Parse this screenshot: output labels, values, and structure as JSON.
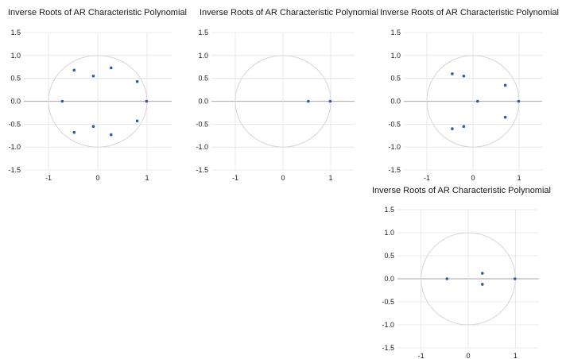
{
  "chart_data": [
    {
      "type": "scatter",
      "title": "Inverse Roots of AR Characteristic Polynomial",
      "xlim": [
        -1.5,
        1.5
      ],
      "ylim": [
        -1.5,
        1.5
      ],
      "x_ticks": [
        "-1",
        "0",
        "1"
      ],
      "y_ticks": [
        "1.5",
        "1.0",
        "0.5",
        "0.0",
        "-0.5",
        "-1.0",
        "-1.5"
      ],
      "unit_circle": true,
      "grid": true,
      "point_color": "#2e5c9e",
      "points": [
        {
          "x": 0.99,
          "y": 0.0
        },
        {
          "x": 0.8,
          "y": 0.43
        },
        {
          "x": 0.8,
          "y": -0.43
        },
        {
          "x": 0.27,
          "y": 0.73
        },
        {
          "x": 0.27,
          "y": -0.73
        },
        {
          "x": -0.09,
          "y": 0.55
        },
        {
          "x": -0.09,
          "y": -0.55
        },
        {
          "x": -0.48,
          "y": 0.68
        },
        {
          "x": -0.48,
          "y": -0.68
        },
        {
          "x": -0.72,
          "y": 0.0
        }
      ]
    },
    {
      "type": "scatter",
      "title": "Inverse Roots of AR Characteristic Polynomial",
      "xlim": [
        -1.5,
        1.5
      ],
      "ylim": [
        -1.5,
        1.5
      ],
      "x_ticks": [
        "-1",
        "0",
        "1"
      ],
      "y_ticks": [
        "1.5",
        "1.0",
        "0.5",
        "0.0",
        "-0.5",
        "-1.0",
        "-1.5"
      ],
      "unit_circle": true,
      "grid": true,
      "point_color": "#2e5c9e",
      "points": [
        {
          "x": 0.53,
          "y": 0.0
        },
        {
          "x": 0.99,
          "y": 0.0
        }
      ]
    },
    {
      "type": "scatter",
      "title": "Inverse Roots of AR Characteristic Polynomial",
      "xlim": [
        -1.5,
        1.5
      ],
      "ylim": [
        -1.5,
        1.5
      ],
      "x_ticks": [
        "-1",
        "0",
        "1"
      ],
      "y_ticks": [
        "1.5",
        "1.0",
        "0.5",
        "0.0",
        "-0.5",
        "-1.0",
        "-1.5"
      ],
      "unit_circle": true,
      "grid": true,
      "point_color": "#2e5c9e",
      "points": [
        {
          "x": 0.99,
          "y": 0.0
        },
        {
          "x": 0.7,
          "y": 0.35
        },
        {
          "x": 0.7,
          "y": -0.35
        },
        {
          "x": 0.1,
          "y": 0.0
        },
        {
          "x": -0.2,
          "y": 0.55
        },
        {
          "x": -0.2,
          "y": -0.55
        },
        {
          "x": -0.45,
          "y": 0.6
        },
        {
          "x": -0.45,
          "y": -0.6
        }
      ]
    },
    {
      "type": "scatter",
      "title": "Inverse Roots of AR Characteristic Polynomial",
      "xlim": [
        -1.5,
        1.5
      ],
      "ylim": [
        -1.5,
        1.5
      ],
      "x_ticks": [
        "-1",
        "0",
        "1"
      ],
      "y_ticks": [
        "1.5",
        "1.0",
        "0.5",
        "0.0",
        "-0.5",
        "-1.0",
        "-1.5"
      ],
      "unit_circle": true,
      "grid": true,
      "point_color": "#2e5c9e",
      "points": [
        {
          "x": -0.45,
          "y": 0.0
        },
        {
          "x": 0.3,
          "y": 0.12
        },
        {
          "x": 0.3,
          "y": -0.12
        },
        {
          "x": 0.99,
          "y": 0.0
        }
      ]
    }
  ]
}
